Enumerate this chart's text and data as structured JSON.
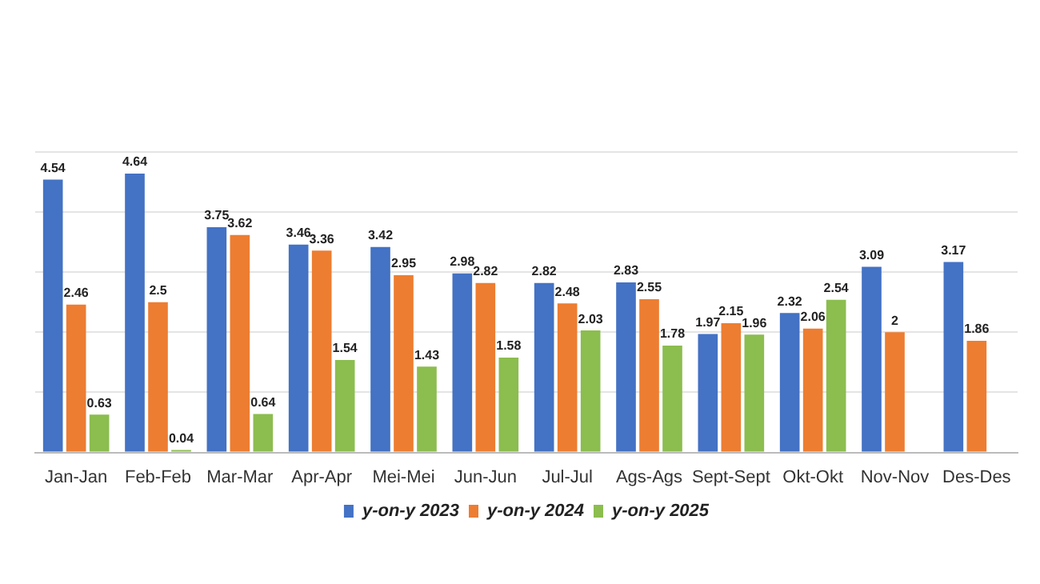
{
  "chart_data": {
    "type": "bar",
    "categories": [
      "Jan-Jan",
      "Feb-Feb",
      "Mar-Mar",
      "Apr-Apr",
      "Mei-Mei",
      "Jun-Jun",
      "Jul-Jul",
      "Ags-Ags",
      "Sept-Sept",
      "Okt-Okt",
      "Nov-Nov",
      "Des-Des"
    ],
    "series": [
      {
        "name": "y-on-y 2023",
        "color": "#4472c4",
        "values": [
          4.54,
          4.64,
          3.75,
          3.46,
          3.42,
          2.98,
          2.82,
          2.83,
          1.97,
          2.32,
          3.09,
          3.17
        ]
      },
      {
        "name": "y-on-y 2024",
        "color": "#ed7d31",
        "values": [
          2.46,
          2.5,
          3.62,
          3.36,
          2.95,
          2.82,
          2.48,
          2.55,
          2.15,
          2.06,
          2,
          1.86
        ]
      },
      {
        "name": "y-on-y 2025",
        "color": "#8cbd4f",
        "values": [
          0.63,
          0.04,
          0.64,
          1.54,
          1.43,
          1.58,
          2.03,
          1.78,
          1.96,
          2.54,
          null,
          null
        ]
      }
    ],
    "ylim": [
      0,
      5
    ],
    "yticks": [
      {
        "value": 0,
        "label": null
      },
      {
        "value": 1,
        "label": null
      },
      {
        "value": 2,
        "label": null
      },
      {
        "value": 3,
        "label": null
      },
      {
        "value": 4,
        "label": null
      },
      {
        "value": 5,
        "label": null
      }
    ],
    "tick_labels": "x",
    "grid": "y",
    "legend": "bottom",
    "data_labels": true
  }
}
